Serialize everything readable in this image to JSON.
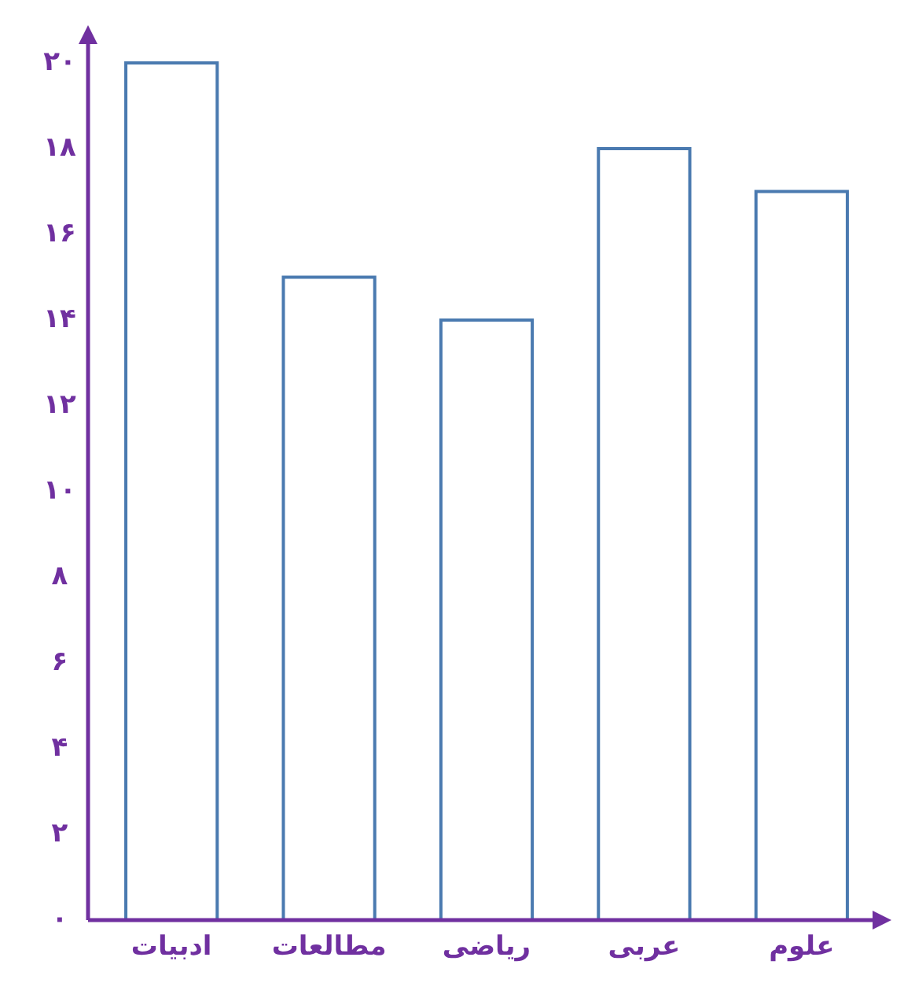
{
  "chart_data": {
    "type": "bar",
    "categories": [
      "ادبیات",
      "مطالعات",
      "ریاضی",
      "عربی",
      "علوم"
    ],
    "values": [
      20,
      15,
      14,
      18,
      17
    ],
    "color": "#4a7ab0",
    "ylim": [
      0,
      20
    ],
    "yticks": [
      {
        "value": 0,
        "label": "۰"
      },
      {
        "value": 2,
        "label": "۲"
      },
      {
        "value": 4,
        "label": "۴"
      },
      {
        "value": 6,
        "label": "۶"
      },
      {
        "value": 8,
        "label": "۸"
      },
      {
        "value": 10,
        "label": "۱۰"
      },
      {
        "value": 12,
        "label": "۱۲"
      },
      {
        "value": 14,
        "label": "۱۴"
      },
      {
        "value": 16,
        "label": "۱۶"
      },
      {
        "value": 18,
        "label": "۱۸"
      },
      {
        "value": 20,
        "label": "۲۰"
      }
    ],
    "grid": false
  }
}
